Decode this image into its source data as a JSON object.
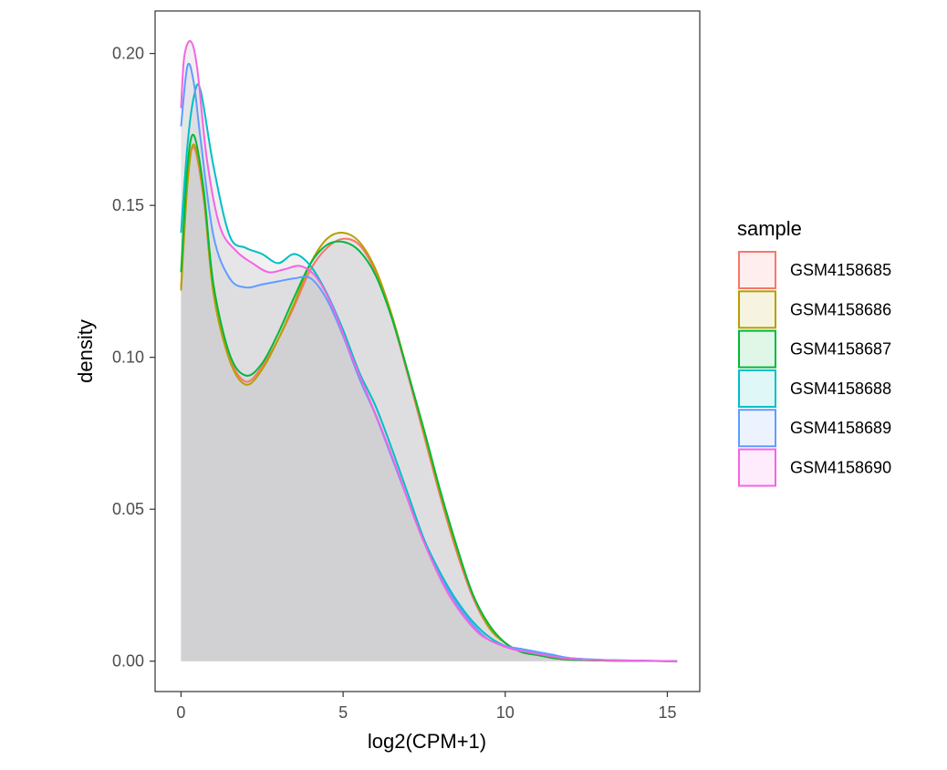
{
  "chart_data": {
    "type": "area",
    "title": "",
    "xlabel": "log2(CPM+1)",
    "ylabel": "density",
    "xlim": [
      -0.8,
      16
    ],
    "ylim": [
      -0.01,
      0.214
    ],
    "xticks": [
      0,
      5,
      10,
      15
    ],
    "xtick_labels": [
      "0",
      "5",
      "10",
      "15"
    ],
    "yticks": [
      0,
      0.05,
      0.1,
      0.15,
      0.2
    ],
    "ytick_labels": [
      "0.00",
      "0.05",
      "0.10",
      "0.15",
      "0.20"
    ],
    "legend": {
      "title": "sample",
      "position": "right"
    },
    "fill_color": "#c8c9cd",
    "fill_opacity": 0.25,
    "series": [
      {
        "name": "GSM4158685",
        "color": "#f8766d",
        "x": [
          0,
          0.2,
          0.4,
          0.7,
          1.0,
          1.5,
          2.0,
          2.5,
          3.0,
          3.5,
          4.0,
          4.5,
          5.0,
          5.5,
          6.0,
          6.5,
          7.0,
          7.5,
          8.0,
          8.5,
          9.0,
          9.5,
          10.0,
          10.5,
          11.0,
          11.5,
          12.0,
          13.0,
          14.0,
          15.3
        ],
        "y": [
          0.123,
          0.158,
          0.169,
          0.152,
          0.122,
          0.1,
          0.092,
          0.097,
          0.106,
          0.117,
          0.129,
          0.136,
          0.139,
          0.137,
          0.128,
          0.113,
          0.094,
          0.074,
          0.054,
          0.036,
          0.021,
          0.011,
          0.006,
          0.003,
          0.002,
          0.001,
          0.0005,
          0.0002,
          0.0001,
          0.0
        ]
      },
      {
        "name": "GSM4158686",
        "color": "#b79f00",
        "x": [
          0,
          0.2,
          0.4,
          0.7,
          1.0,
          1.5,
          2.0,
          2.5,
          3.0,
          3.5,
          4.0,
          4.5,
          5.0,
          5.5,
          6.0,
          6.5,
          7.0,
          7.5,
          8.0,
          8.5,
          9.0,
          9.5,
          10.0,
          10.5,
          11.0,
          11.5,
          12.0,
          13.0,
          14.0,
          15.3
        ],
        "y": [
          0.122,
          0.157,
          0.17,
          0.153,
          0.121,
          0.099,
          0.091,
          0.096,
          0.106,
          0.118,
          0.131,
          0.139,
          0.141,
          0.138,
          0.129,
          0.114,
          0.095,
          0.075,
          0.055,
          0.037,
          0.022,
          0.011,
          0.006,
          0.003,
          0.002,
          0.001,
          0.0005,
          0.0002,
          0.0001,
          0.0
        ]
      },
      {
        "name": "GSM4158687",
        "color": "#00ba38",
        "x": [
          0,
          0.2,
          0.4,
          0.7,
          1.0,
          1.5,
          2.0,
          2.5,
          3.0,
          3.5,
          4.0,
          4.5,
          5.0,
          5.5,
          6.0,
          6.5,
          7.0,
          7.5,
          8.0,
          8.5,
          9.0,
          9.5,
          10.0,
          10.5,
          11.0,
          11.5,
          12.0,
          13.0,
          14.0,
          15.3
        ],
        "y": [
          0.128,
          0.163,
          0.173,
          0.155,
          0.124,
          0.101,
          0.094,
          0.098,
          0.108,
          0.12,
          0.131,
          0.137,
          0.138,
          0.135,
          0.127,
          0.113,
          0.095,
          0.076,
          0.056,
          0.038,
          0.022,
          0.012,
          0.006,
          0.003,
          0.002,
          0.001,
          0.0005,
          0.0002,
          0.0001,
          0.0
        ]
      },
      {
        "name": "GSM4158688",
        "color": "#00bfc4",
        "x": [
          0,
          0.2,
          0.4,
          0.6,
          1.0,
          1.5,
          2.0,
          2.5,
          3.0,
          3.5,
          4.0,
          4.5,
          5.0,
          5.5,
          6.0,
          6.5,
          7.0,
          7.5,
          8.0,
          8.5,
          9.0,
          9.5,
          10.0,
          10.5,
          11.0,
          11.5,
          12.0,
          13.0,
          14.0,
          15.3
        ],
        "y": [
          0.141,
          0.17,
          0.186,
          0.188,
          0.163,
          0.14,
          0.136,
          0.134,
          0.131,
          0.134,
          0.13,
          0.121,
          0.109,
          0.095,
          0.084,
          0.07,
          0.055,
          0.04,
          0.029,
          0.02,
          0.013,
          0.008,
          0.005,
          0.004,
          0.003,
          0.002,
          0.001,
          0.0004,
          0.0002,
          0.0
        ]
      },
      {
        "name": "GSM4158689",
        "color": "#619cff",
        "x": [
          0,
          0.2,
          0.4,
          0.6,
          1.0,
          1.5,
          2.0,
          2.5,
          3.0,
          3.5,
          4.0,
          4.5,
          5.0,
          5.5,
          6.0,
          6.5,
          7.0,
          7.5,
          8.0,
          8.5,
          9.0,
          9.5,
          10.0,
          10.5,
          11.0,
          11.5,
          12.0,
          13.0,
          14.0,
          15.3
        ],
        "y": [
          0.176,
          0.196,
          0.19,
          0.172,
          0.14,
          0.126,
          0.123,
          0.124,
          0.125,
          0.126,
          0.126,
          0.119,
          0.107,
          0.093,
          0.081,
          0.067,
          0.053,
          0.039,
          0.028,
          0.019,
          0.012,
          0.007,
          0.005,
          0.004,
          0.003,
          0.002,
          0.001,
          0.0004,
          0.0002,
          0.0
        ]
      },
      {
        "name": "GSM4158690",
        "color": "#f564e3",
        "x": [
          0,
          0.1,
          0.3,
          0.5,
          0.8,
          1.2,
          1.7,
          2.2,
          2.7,
          3.2,
          3.7,
          4.2,
          4.7,
          5.2,
          5.7,
          6.2,
          6.7,
          7.2,
          7.7,
          8.2,
          8.7,
          9.2,
          9.7,
          10.2,
          10.7,
          11.2,
          11.8,
          12.5,
          13.5,
          15.3
        ],
        "y": [
          0.182,
          0.199,
          0.204,
          0.195,
          0.165,
          0.143,
          0.135,
          0.131,
          0.128,
          0.129,
          0.13,
          0.126,
          0.116,
          0.102,
          0.089,
          0.076,
          0.062,
          0.047,
          0.034,
          0.023,
          0.015,
          0.009,
          0.006,
          0.004,
          0.003,
          0.002,
          0.001,
          0.0005,
          0.0002,
          0.0
        ]
      }
    ]
  }
}
